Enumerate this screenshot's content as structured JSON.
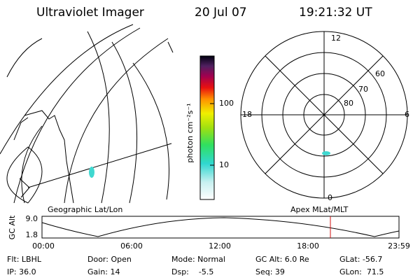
{
  "header": {
    "instrument": "Ultraviolet Imager",
    "date": "20 Jul 07",
    "time": "19:21:32 UT"
  },
  "colorbar": {
    "label": "photon cm⁻²s⁻¹",
    "ticks": [
      "100",
      "10"
    ]
  },
  "polar": {
    "hour_labels": [
      "12",
      "6",
      "18",
      "0"
    ],
    "lat_labels": [
      "60",
      "70",
      "80"
    ]
  },
  "orbit_panel": {
    "y_label": "GC Alt",
    "left_title": "Geographic Lat/Lon",
    "right_title": "Apex MLat/MLT",
    "y_ticks": [
      "9.0",
      "1.8"
    ],
    "x_ticks": [
      "00:00",
      "06:00",
      "12:00",
      "18:00",
      "23:59"
    ]
  },
  "status": {
    "rows": [
      [
        "Flt: LBHL",
        "Door: Open",
        "Mode: Normal",
        "GC Alt: 6.0 Re",
        "GLat: -56.7"
      ],
      [
        "IP: 36.0",
        "Gain: 14",
        "Dsp:    -5.5",
        "Seq: 39",
        "GLon:  71.5"
      ]
    ]
  }
}
